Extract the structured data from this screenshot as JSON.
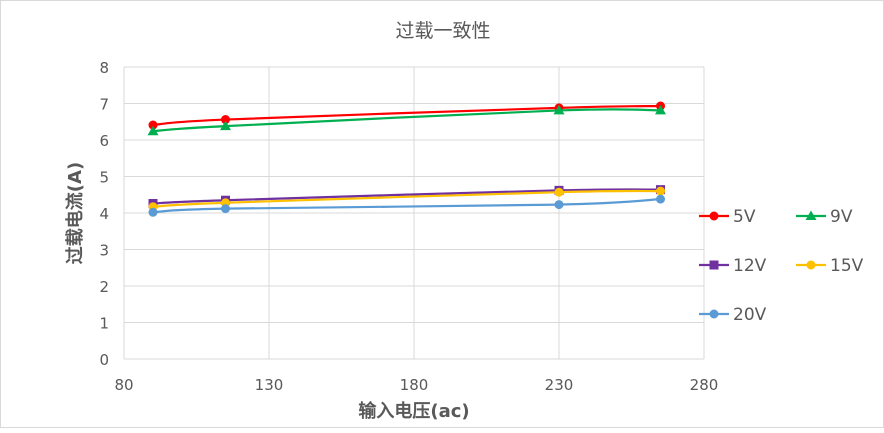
{
  "chart_data": {
    "type": "line",
    "title": "过载一致性",
    "xlabel": "输入电压(ac)",
    "ylabel": "过载电流(A)",
    "xlim": [
      80,
      280
    ],
    "ylim": [
      0,
      8
    ],
    "xticks": [
      80,
      130,
      180,
      230,
      280
    ],
    "yticks": [
      0,
      1,
      2,
      3,
      4,
      5,
      6,
      7,
      8
    ],
    "grid": true,
    "legend_position": "right",
    "x": [
      90,
      115,
      230,
      265
    ],
    "series": [
      {
        "name": "5V",
        "color": "#ff0000",
        "marker": "circle",
        "values": [
          6.41,
          6.56,
          6.88,
          6.93
        ]
      },
      {
        "name": "9V",
        "color": "#00b050",
        "marker": "triangle",
        "values": [
          6.24,
          6.38,
          6.81,
          6.81
        ]
      },
      {
        "name": "12V",
        "color": "#7030a0",
        "marker": "square",
        "values": [
          4.26,
          4.35,
          4.62,
          4.64
        ]
      },
      {
        "name": "15V",
        "color": "#ffc000",
        "marker": "circle",
        "values": [
          4.17,
          4.28,
          4.57,
          4.6
        ]
      },
      {
        "name": "20V",
        "color": "#5b9bd5",
        "marker": "circle",
        "values": [
          4.02,
          4.12,
          4.23,
          4.38
        ]
      }
    ]
  }
}
